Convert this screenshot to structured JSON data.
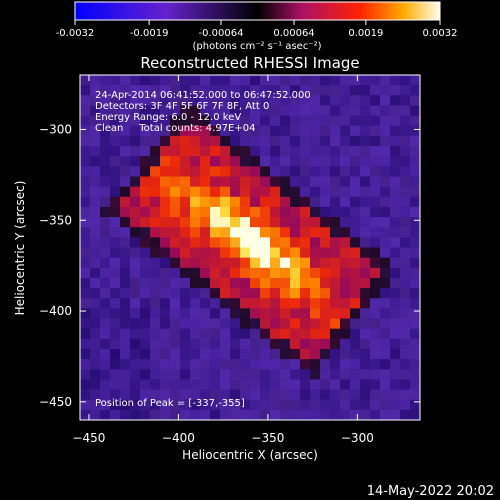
{
  "chart_data": {
    "type": "heatmap",
    "title": "Reconstructed RHESSI Image",
    "xlabel": "Heliocentric X (arcsec)",
    "ylabel": "Heliocentric Y (arcsec)",
    "xlim": [
      -455,
      -265
    ],
    "ylim": [
      -460,
      -270
    ],
    "x_ticks": [
      {
        "value": -450,
        "label": "−450"
      },
      {
        "value": -400,
        "label": "−400"
      },
      {
        "value": -350,
        "label": "−350"
      },
      {
        "value": -300,
        "label": "−300"
      }
    ],
    "y_ticks": [
      {
        "value": -300,
        "label": "−300"
      },
      {
        "value": -350,
        "label": "−350"
      },
      {
        "value": -400,
        "label": "−400"
      },
      {
        "value": -450,
        "label": "−450"
      }
    ],
    "colorbar": {
      "label": "(photons cm⁻² s⁻¹ asec⁻²)",
      "range": [
        -0.0032,
        0.0032
      ],
      "ticks": [
        {
          "value": -0.0032,
          "label": "-0.0032"
        },
        {
          "value": -0.0019,
          "label": "-0.0019"
        },
        {
          "value": -0.00064,
          "label": "-0.00064"
        },
        {
          "value": 0.00064,
          "label": "0.00064"
        },
        {
          "value": 0.0019,
          "label": "0.0019"
        },
        {
          "value": 0.0032,
          "label": "0.0032"
        }
      ]
    },
    "annotations": [
      "24-Apr-2014 06:41:52.000 to 06:47:52.000",
      "Detectors: 3F 4F 5F 6F 7F 8F, Att 0",
      "Energy Range: 6.0 - 12.0 keV",
      "Clean     Total counts: 4.97E+04"
    ],
    "peak_label": "Position of Peak = [-337,-355]",
    "peak": [
      -337,
      -355
    ],
    "grid": false
  },
  "footer": {
    "date": "14-May-2022 20:02"
  }
}
